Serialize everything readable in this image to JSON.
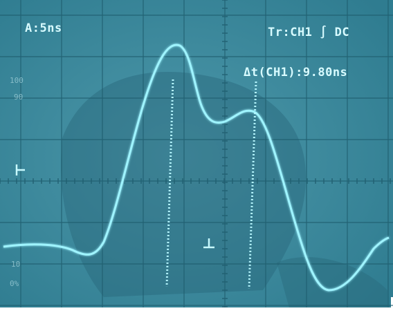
{
  "screen": {
    "timebase": "A:5ns",
    "trigger": "Tr:CH1 ∫ DC",
    "cursor_readout": "Δt(CH1):9.80ns",
    "graticule_labels": [
      "100",
      "90",
      "10",
      "0%"
    ]
  }
}
